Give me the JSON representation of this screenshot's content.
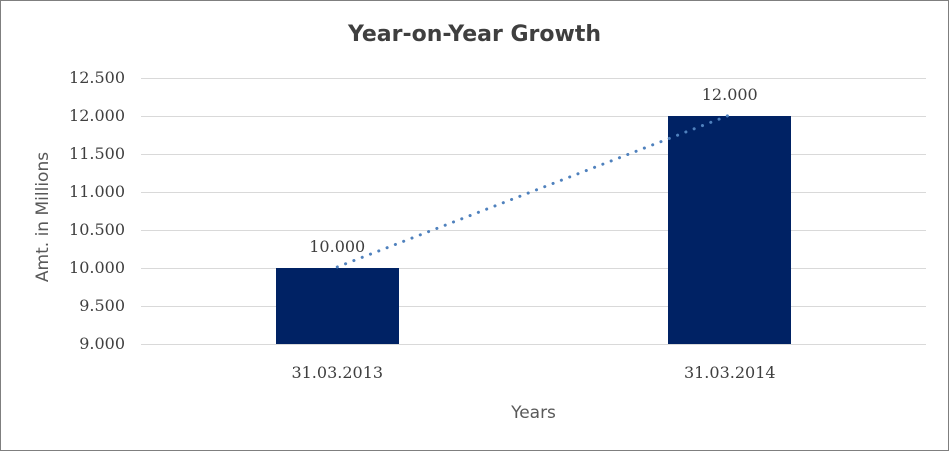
{
  "chart_data": {
    "type": "bar",
    "title": "Year-on-Year Growth",
    "categories": [
      "31.03.2013",
      "31.03.2014"
    ],
    "series": [
      {
        "name": "amount-bars",
        "type": "bar",
        "values": [
          10.0,
          12.0
        ],
        "color": "#002264"
      },
      {
        "name": "growth-trendline",
        "type": "dotted-line",
        "values": [
          10.0,
          12.0
        ],
        "color": "#4f81bd"
      }
    ],
    "data_labels": [
      "10.000",
      "12.000"
    ],
    "xlabel": "Years",
    "ylabel": "Amt. in Millions",
    "ylim": [
      9.0,
      12.5
    ],
    "ytick_step": 0.5,
    "yticks": [
      "12.500",
      "12.000",
      "11.500",
      "11.000",
      "10.500",
      "10.000",
      "9.500",
      "9.000"
    ],
    "grid": true,
    "colors": {
      "bar_fill": "#002264",
      "trendline": "#4f81bd",
      "gridline": "#d9d9d9",
      "tick_text": "#3f3f3f",
      "title_text": "#3f3f3f",
      "axis_title_text": "#595959",
      "canvas_border": "#7f7f7f",
      "background": "#ffffff"
    },
    "legend": "none"
  }
}
